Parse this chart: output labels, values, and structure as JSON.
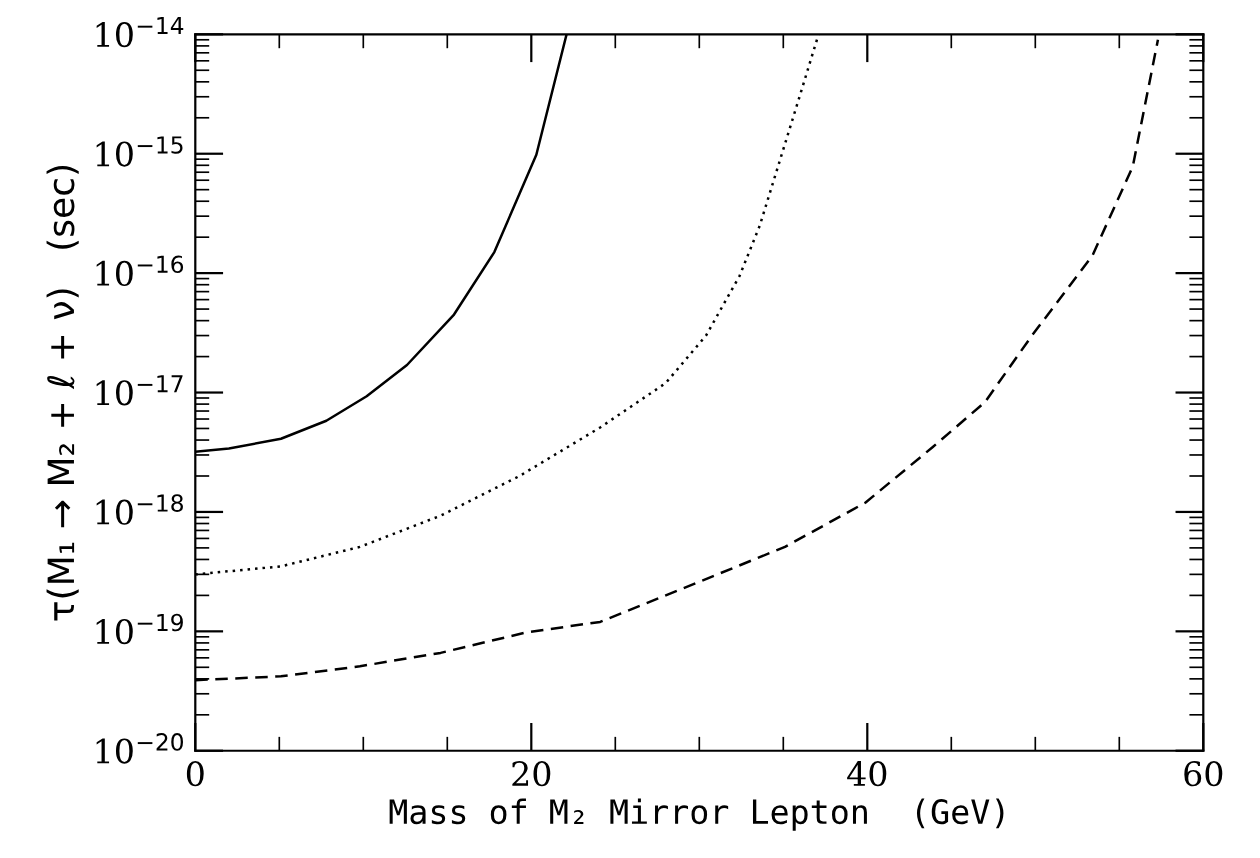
{
  "chart_data": {
    "type": "line",
    "xlabel": "Mass of M₂ Mirror Lepton  (GeV)",
    "ylabel": "τ(M₁ → M₂ + ℓ + ν)   (sec)",
    "log": "y",
    "xlim": [
      0,
      60
    ],
    "xticks": [
      0,
      20,
      40,
      60
    ],
    "ylim": [
      1e-20,
      1e-14
    ],
    "yticks": [
      {
        "value": 1e-20,
        "label": "10$^{−20}$"
      },
      {
        "value": 1e-19,
        "label": "10$^{−19}$"
      },
      {
        "value": 1e-18,
        "label": "10$^{−18}$"
      },
      {
        "value": 1e-17,
        "label": "10$^{−17}$"
      },
      {
        "value": 1e-16,
        "label": "10$^{−16}$"
      },
      {
        "value": 1e-15,
        "label": "10$^{−15}$"
      },
      {
        "value": 1e-14,
        "label": "10$^{−14}$"
      }
    ],
    "grid": false,
    "legend": false,
    "series": [
      {
        "color": "#000000",
        "line_style": "solid",
        "x": [
          0,
          2,
          5.1,
          7.8,
          10.2,
          12.6,
          15.4,
          17.8,
          20.3,
          22.1
        ],
        "values": [
          3.2e-18,
          3.4e-18,
          4.1e-18,
          5.8e-18,
          9.3e-18,
          1.7e-17,
          4.5e-17,
          1.5e-16,
          9.8e-16,
          1e-14
        ]
      },
      {
        "color": "#000000",
        "line_style": "dotted",
        "x": [
          0,
          5.1,
          9.8,
          14.6,
          19.3,
          24.1,
          28.0,
          30.4,
          32.4,
          33.6,
          35.9,
          37.1
        ],
        "values": [
          3e-19,
          3.5e-19,
          5.1e-19,
          9.3e-19,
          2e-18,
          5.1e-18,
          1.2e-17,
          3e-17,
          9.5e-17,
          2.5e-16,
          2.8e-15,
          1e-14
        ]
      },
      {
        "color": "#000000",
        "line_style": "dashed",
        "x": [
          0,
          5.1,
          9.8,
          14.6,
          19.7,
          24.1,
          30.0,
          35.1,
          39.9,
          43.9,
          47.0,
          49.8,
          53.4,
          55.8,
          57.3
        ],
        "values": [
          3.9e-20,
          4.2e-20,
          5.1e-20,
          6.6e-20,
          9.8e-20,
          1.2e-19,
          2.6e-19,
          5.1e-19,
          1.2e-18,
          3.5e-18,
          8.3e-18,
          3e-17,
          1.4e-16,
          7.8e-16,
          9e-15
        ]
      }
    ]
  }
}
